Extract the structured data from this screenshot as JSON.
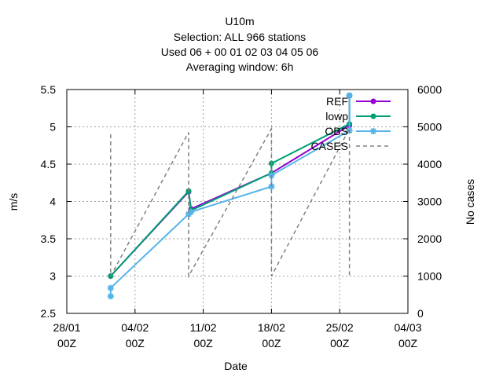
{
  "chart_data": {
    "type": "line",
    "title_lines": [
      "U10m",
      "Selection: ALL     966 stations",
      "Used  06  + 00 01 02 03 04 05 06",
      "Averaging window:  6h"
    ],
    "xlabel": "Date",
    "ylabel": "m/s",
    "y2label": "No cases",
    "x_tick_labels": [
      [
        "28/01",
        "00Z"
      ],
      [
        "04/02",
        "00Z"
      ],
      [
        "11/02",
        "00Z"
      ],
      [
        "18/02",
        "00Z"
      ],
      [
        "25/02",
        "00Z"
      ],
      [
        "04/03",
        "00Z"
      ]
    ],
    "x_ticks": [
      0,
      7,
      14,
      21,
      28,
      35
    ],
    "xlim": [
      0,
      35
    ],
    "ylim": [
      2.5,
      5.5
    ],
    "y_ticks": [
      2.5,
      3,
      3.5,
      4,
      4.5,
      5,
      5.5
    ],
    "y_tick_labels": [
      "2.5",
      "3",
      "3.5",
      "4",
      "4.5",
      "5",
      "5.5"
    ],
    "y2lim": [
      0,
      6000
    ],
    "y2_ticks": [
      0,
      1000,
      2000,
      3000,
      4000,
      5000,
      6000
    ],
    "y2_tick_labels": [
      "0",
      "1000",
      "2000",
      "3000",
      "4000",
      "5000",
      "6000"
    ],
    "grid": true,
    "legend_position": "top-right",
    "series": [
      {
        "name": "REF",
        "color": "#9400d3",
        "marker": "circle",
        "x": [
          4.5,
          12.5,
          12.75,
          21.0,
          29.0,
          29.0
        ],
        "y": [
          3.0,
          4.13,
          3.9,
          4.38,
          5.02,
          5.42
        ]
      },
      {
        "name": "lowp",
        "color": "#009e73",
        "marker": "circle",
        "x": [
          4.5,
          12.5,
          12.75,
          21.0,
          21.0,
          29.0,
          29.0
        ],
        "y": [
          3.0,
          4.14,
          3.88,
          4.38,
          4.51,
          5.04,
          5.42
        ]
      },
      {
        "name": "OBS",
        "color": "#56b4e9",
        "marker": "star",
        "x": [
          4.5,
          4.5,
          12.5,
          12.75,
          21.0,
          21.0,
          29.0,
          29.0
        ],
        "y": [
          2.73,
          2.84,
          3.83,
          3.86,
          4.2,
          4.35,
          4.95,
          5.42
        ]
      },
      {
        "name": "CASES",
        "color": "#808080",
        "dash": true,
        "axis": "y2",
        "x": [
          4.5,
          4.5,
          12.5,
          12.5,
          21.0,
          21.0,
          29.0,
          29.0
        ],
        "y": [
          4800,
          1000,
          4850,
          1000,
          4950,
          1000,
          4950,
          1000
        ]
      }
    ]
  }
}
